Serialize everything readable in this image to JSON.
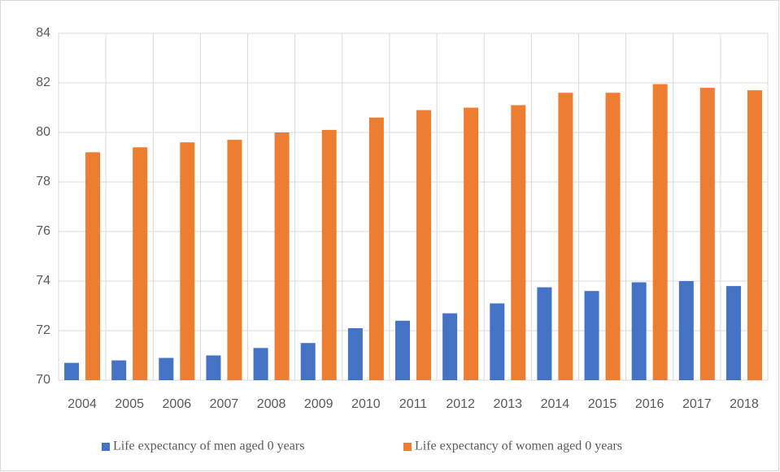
{
  "chart_data": {
    "type": "bar",
    "categories": [
      "2004",
      "2005",
      "2006",
      "2007",
      "2008",
      "2009",
      "2010",
      "2011",
      "2012",
      "2013",
      "2014",
      "2015",
      "2016",
      "2017",
      "2018"
    ],
    "series": [
      {
        "name": "Life expectancy of men aged 0 years",
        "color": "#4472c4",
        "values": [
          70.7,
          70.8,
          70.9,
          71.0,
          71.3,
          71.5,
          72.1,
          72.4,
          72.7,
          73.1,
          73.75,
          73.6,
          73.95,
          74.0,
          73.8
        ]
      },
      {
        "name": "Life expectancy of women aged 0 years",
        "color": "#ed7d31",
        "values": [
          79.2,
          79.4,
          79.6,
          79.7,
          80.0,
          80.1,
          80.6,
          80.9,
          81.0,
          81.1,
          81.6,
          81.6,
          81.95,
          81.8,
          81.7
        ]
      }
    ],
    "ylim": [
      70,
      84
    ],
    "yticks": [
      70,
      72,
      74,
      76,
      78,
      80,
      82,
      84
    ],
    "grid": true,
    "legend": "bottom"
  }
}
